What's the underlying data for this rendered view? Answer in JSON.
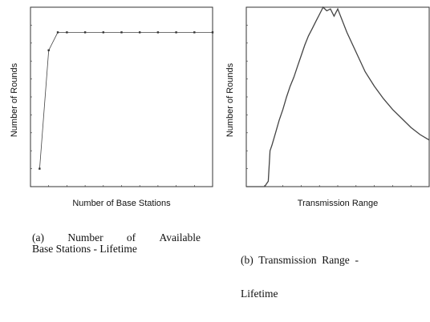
{
  "chart_data": [
    {
      "type": "line",
      "xlabel": "Number of Base Stations",
      "ylabel": "Number of Rounds",
      "xlim": [
        0,
        10
      ],
      "ylim": [
        0,
        10
      ],
      "grid": false,
      "x": [
        0.5,
        1.0,
        1.5,
        2.0,
        3.0,
        4.0,
        5.0,
        6.0,
        7.0,
        8.0,
        9.0,
        10.0
      ],
      "values": [
        1.0,
        7.6,
        8.6,
        8.6,
        8.6,
        8.6,
        8.6,
        8.6,
        8.6,
        8.6,
        8.6,
        8.6
      ],
      "marker": "square"
    },
    {
      "type": "line",
      "xlabel": "Transmission Range",
      "ylabel": "Number of Rounds",
      "xlim": [
        0,
        100
      ],
      "ylim": [
        0,
        10
      ],
      "grid": false,
      "x": [
        0,
        5,
        10,
        12,
        13,
        14,
        16,
        18,
        20,
        22,
        24,
        26,
        28,
        30,
        32,
        34,
        36,
        38,
        40,
        42,
        44,
        46,
        48,
        50,
        55,
        60,
        65,
        70,
        75,
        80,
        85,
        90,
        95,
        100
      ],
      "values": [
        0.0,
        0.0,
        0.0,
        0.3,
        2.0,
        2.3,
        3.0,
        3.7,
        4.3,
        5.0,
        5.6,
        6.1,
        6.7,
        7.3,
        7.9,
        8.4,
        8.8,
        9.2,
        9.6,
        10.0,
        9.8,
        9.9,
        9.5,
        9.9,
        8.6,
        7.5,
        6.4,
        5.6,
        4.9,
        4.3,
        3.8,
        3.3,
        2.9,
        2.6
      ]
    }
  ],
  "captions": {
    "a_line1": [
      "(a)",
      "Number",
      "of",
      "Available"
    ],
    "a_line2": "Base Stations - Lifetime",
    "b_line1": "(b)  Transmission  Range  -",
    "b_line2": "Lifetime"
  },
  "colors": {
    "line": "#444444",
    "axis": "#333333",
    "marker": "#333333"
  }
}
